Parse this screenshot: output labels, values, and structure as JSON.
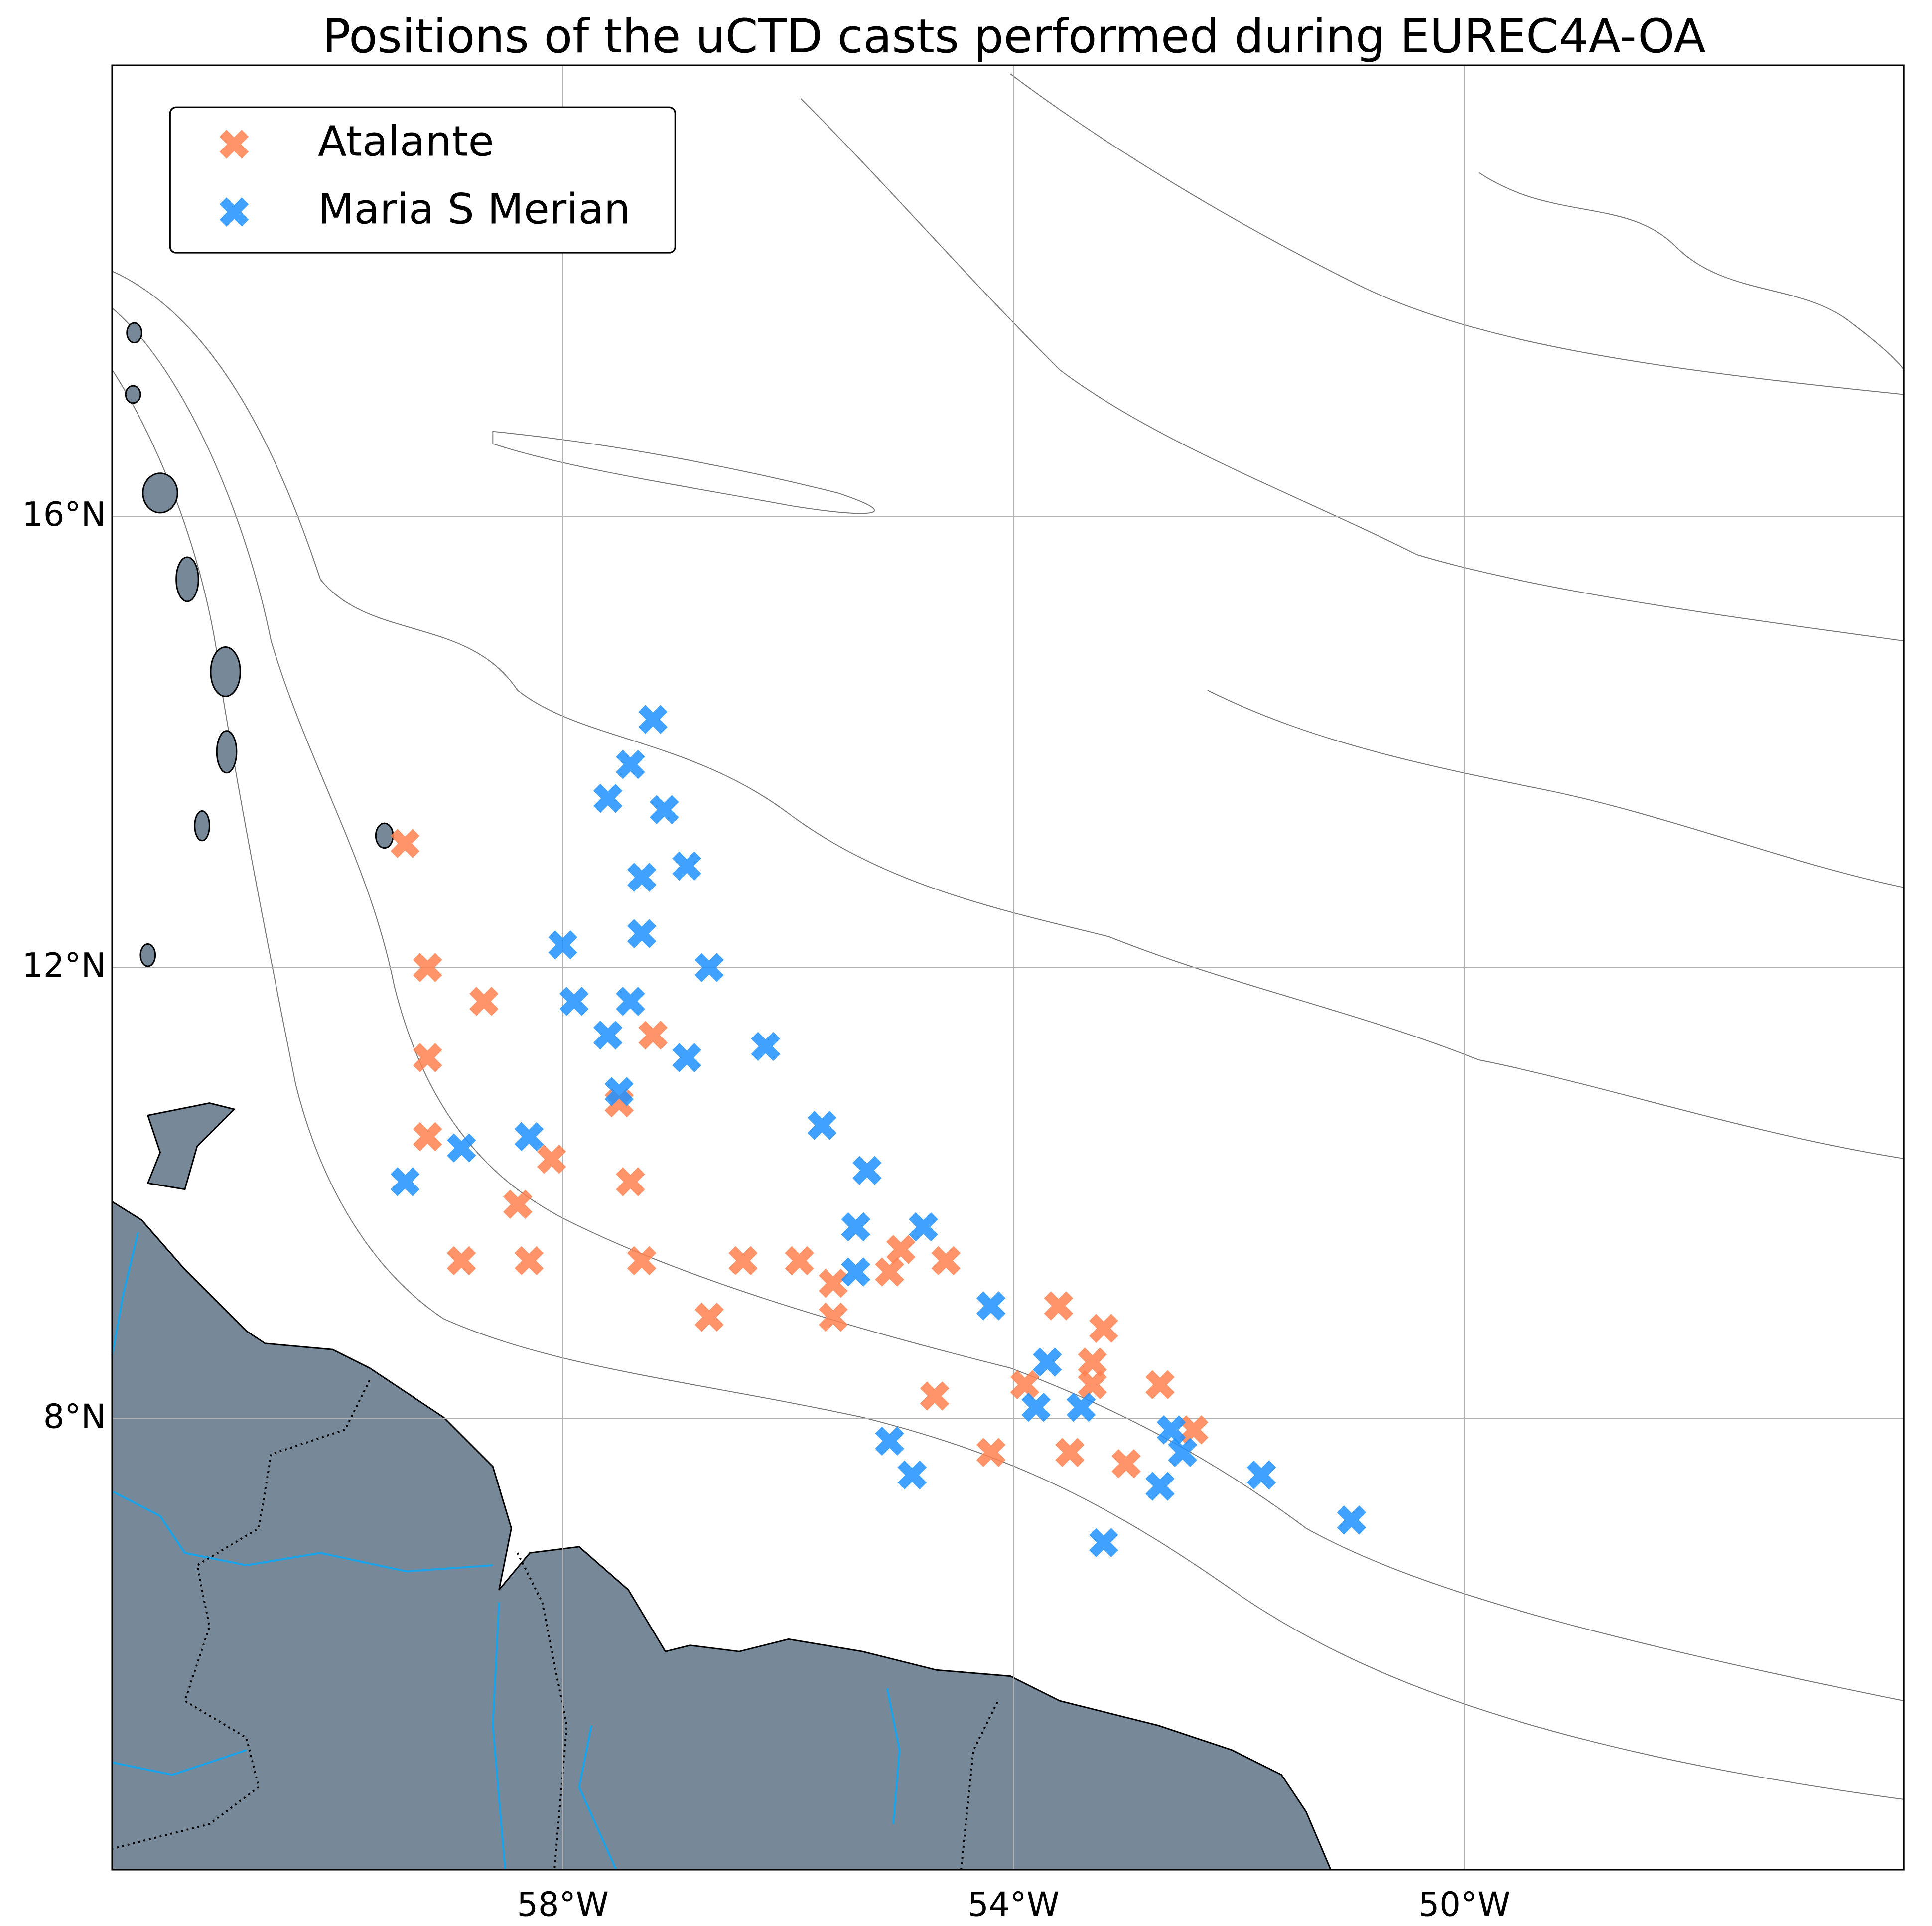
{
  "chart_data": {
    "type": "scatter",
    "title": "Positions of the uCTD casts performed during EUREC4A-OA",
    "xlim": [
      -62,
      -46.1
    ],
    "ylim": [
      4,
      20
    ],
    "xticks": [
      {
        "value": -58,
        "label": "58°W"
      },
      {
        "value": -54,
        "label": "54°W"
      },
      {
        "value": -50,
        "label": "50°W"
      }
    ],
    "yticks": [
      {
        "value": 8,
        "label": "8°N"
      },
      {
        "value": 12,
        "label": "12°N"
      },
      {
        "value": 16,
        "label": "16°N"
      }
    ],
    "grid": true,
    "legend": "upper left",
    "series": [
      {
        "name": "Atalante",
        "color": "#ff8050",
        "x": [
          -59.4,
          -59.2,
          -58.7,
          -59.2,
          -57.2,
          -59.2,
          -57.5,
          -58.1,
          -57.4,
          -58.4,
          -58.9,
          -58.3,
          -57.3,
          -56.4,
          -55.9,
          -56.7,
          -55.6,
          -55.0,
          -55.6,
          -55.1,
          -54.7,
          -54.2,
          -54.6,
          -53.6,
          -53.2,
          -53.9,
          -53.3,
          -53.5,
          -53.0,
          -52.7,
          -52.4,
          -53.3
        ],
        "y": [
          13.1,
          12.0,
          11.7,
          11.2,
          11.4,
          10.5,
          10.8,
          10.3,
          10.1,
          9.9,
          9.4,
          9.4,
          9.4,
          9.4,
          9.4,
          8.9,
          9.2,
          9.5,
          8.9,
          9.3,
          8.2,
          7.7,
          9.4,
          9.0,
          8.8,
          8.3,
          8.3,
          7.7,
          7.6,
          8.3,
          7.9,
          8.5
        ]
      },
      {
        "name": "Maria S Merian",
        "color": "#1e90ff",
        "x": [
          -57.2,
          -57.4,
          -57.6,
          -57.1,
          -56.9,
          -57.3,
          -57.3,
          -57.4,
          -57.6,
          -57.9,
          -58.0,
          -56.9,
          -57.5,
          -58.3,
          -58.9,
          -59.4,
          -56.7,
          -56.2,
          -55.7,
          -55.3,
          -55.4,
          -55.4,
          -54.8,
          -54.2,
          -53.7,
          -53.4,
          -52.6,
          -51.8,
          -51.0,
          -53.2,
          -52.7,
          -52.5,
          -55.1,
          -54.9,
          -53.8
        ],
        "y": [
          14.2,
          13.8,
          13.5,
          13.4,
          12.9,
          12.8,
          12.3,
          11.7,
          11.4,
          11.7,
          12.2,
          11.2,
          10.9,
          10.5,
          10.4,
          10.1,
          12.0,
          11.3,
          10.6,
          10.2,
          9.7,
          9.3,
          9.7,
          9.0,
          8.5,
          8.1,
          7.9,
          7.5,
          7.1,
          6.9,
          7.4,
          7.7,
          7.8,
          7.5,
          8.1
        ]
      }
    ]
  }
}
